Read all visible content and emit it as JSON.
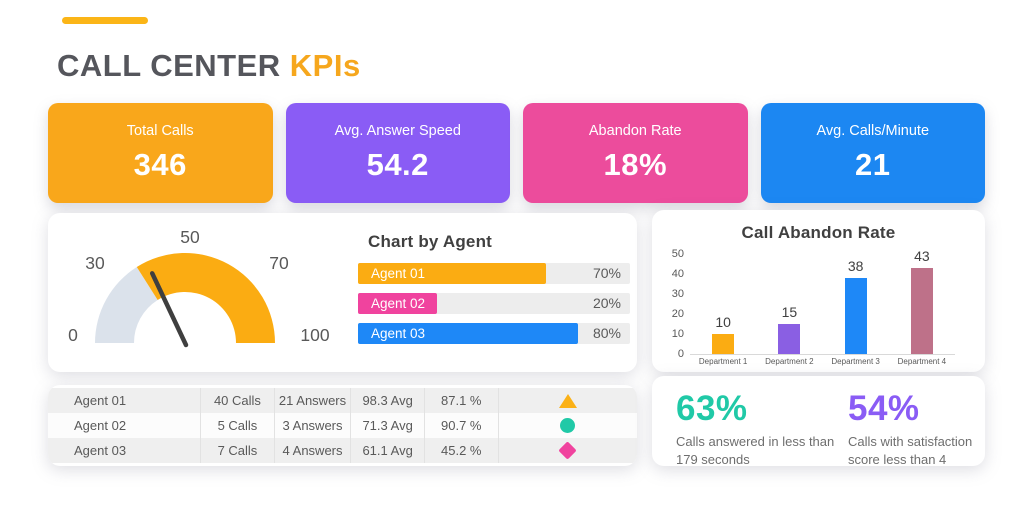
{
  "header": {
    "title_main": "CALL CENTER ",
    "title_accent": "KPIs",
    "accent_text_color": "#F6A71D",
    "accent_line_color": "#FBB517"
  },
  "kpi_cards": [
    {
      "label": "Total Calls",
      "value": "346",
      "color": "#F9A71B"
    },
    {
      "label": "Avg. Answer Speed",
      "value": "54.2",
      "color": "#8A5CF5"
    },
    {
      "label": "Abandon Rate",
      "value": "18%",
      "color": "#EC4C9C"
    },
    {
      "label": "Avg. Calls/Minute",
      "value": "21",
      "color": "#1C87F2"
    }
  ],
  "chart_data": [
    {
      "type": "gauge",
      "axis_labels": [
        "0",
        "30",
        "50",
        "70",
        "100"
      ],
      "range": [
        0,
        100
      ],
      "segments": [
        {
          "from": 0,
          "to": 32,
          "color": "#DBE2EB"
        },
        {
          "from": 32,
          "to": 100,
          "color": "#FBAC12"
        }
      ],
      "needle_value": 36,
      "needle_color": "#3F3F3F"
    },
    {
      "type": "bar",
      "orientation": "horizontal",
      "title": "Chart by Agent",
      "categories": [
        "Agent 01",
        "Agent 02",
        "Agent 03"
      ],
      "values": [
        70,
        20,
        80
      ],
      "value_labels": [
        "70%",
        "20%",
        "80%"
      ],
      "bar_colors": [
        "#FBAC12",
        "#F0439E",
        "#1E88F7"
      ],
      "visual_fractions": [
        0.69,
        0.29,
        0.81
      ],
      "track_color": "#EDEDED"
    },
    {
      "type": "bar",
      "orientation": "vertical",
      "title": "Call Abandon Rate",
      "categories": [
        "Department 1",
        "Department 2",
        "Department 3",
        "Department 4"
      ],
      "values": [
        10,
        15,
        38,
        43
      ],
      "bar_colors": [
        "#FBAC12",
        "#8A5FE3",
        "#1E88F7",
        "#BE7189"
      ],
      "ylim": [
        0,
        50
      ],
      "yticks": [
        0,
        10,
        20,
        30,
        40,
        50
      ],
      "grid": false
    }
  ],
  "agent_table": {
    "rows": [
      {
        "name": "Agent 01",
        "calls": "40 Calls",
        "answers": "21 Answers",
        "avg": "98.3 Avg",
        "pct": "87.1 %",
        "shape": "triangle",
        "shape_color": "#FBB116"
      },
      {
        "name": "Agent 02",
        "calls": "5 Calls",
        "answers": "3 Answers",
        "avg": "71.3 Avg",
        "pct": "90.7 %",
        "shape": "circle",
        "shape_color": "#20C9A7"
      },
      {
        "name": "Agent 03",
        "calls": "7 Calls",
        "answers": "4 Answers",
        "avg": "61.1 Avg",
        "pct": "45.2 %",
        "shape": "diamond",
        "shape_color": "#F0439E"
      }
    ]
  },
  "stats": [
    {
      "value": "63%",
      "color": "#20C9A7",
      "caption": "Calls answered in less than 179 seconds"
    },
    {
      "value": "54%",
      "color": "#8A5CF5",
      "caption": "Calls with satisfaction score less than 4"
    }
  ]
}
